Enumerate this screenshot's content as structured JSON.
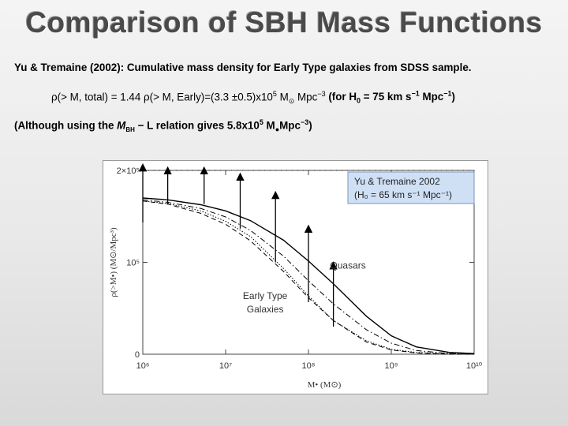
{
  "title": "Comparison of SBH Mass Functions",
  "line1": "Yu & Tremaine (2002): Cumulative mass density for Early Type galaxies from SDSS sample.",
  "line2": {
    "rho1": "ρ",
    "part1": "(> M, total) = 1.44 ",
    "rho2": "ρ",
    "part2": "(> M, Early)=(3.3 ±0.5)x10",
    "exp": "5",
    "msun": " M",
    "sun": "⊙",
    "mpc": " Mpc",
    "mpcexp": "−3",
    "hubble_pre": " (for H",
    "hubble_sub": "0",
    "hubble_post": " = 75 km s",
    "sexp": "−1",
    "mpc2": " Mpc",
    "mpc2exp": "−1",
    "close": ")"
  },
  "line3": {
    "pre": "(Although using the ",
    "m": "M",
    "sub": "BH",
    "mid": " − L relation gives 5.8x10",
    "exp": "5",
    "msun": " M",
    "sun": "●",
    "mpc": "Mpc",
    "mpcexp": "−3",
    "close": ")"
  },
  "chart_data": {
    "type": "line",
    "xscale": "log",
    "xlim": [
      1000000,
      10000000000
    ],
    "ylim": [
      0,
      3
    ],
    "xticks": [
      {
        "value": 1000000,
        "label": "10⁶"
      },
      {
        "value": 10000000,
        "label": "10⁷"
      },
      {
        "value": 100000000,
        "label": "10⁸"
      },
      {
        "value": 1000000000,
        "label": "10⁹"
      },
      {
        "value": 10000000000,
        "label": "10¹⁰"
      }
    ],
    "yticks": [
      {
        "value": 0,
        "label": "0"
      },
      {
        "value": 1.5,
        "label": "10⁵"
      },
      {
        "value": 3,
        "label": "2×10⁵"
      }
    ],
    "xlabel": "M• (M⊙)",
    "ylabel": "ρ(>M•) (M⊙/Mpc³)",
    "legend_box": {
      "line1": "Yu & Tremaine 2002",
      "line2": "(H₀ = 65 km s⁻¹ Mpc⁻¹)"
    },
    "annotations": [
      {
        "text": "Quasars",
        "x": 300000000,
        "y": 1.4
      },
      {
        "text": "Early Type",
        "x": 30000000,
        "y": 0.9
      },
      {
        "text": "Galaxies",
        "x": 30000000,
        "y": 0.68
      }
    ],
    "series": [
      {
        "name": "Quasars",
        "style": "solid",
        "x": [
          1000000,
          2000000,
          5000000,
          10000000,
          20000000,
          50000000,
          100000000,
          200000000,
          500000000,
          1000000000,
          2000000000,
          5000000000,
          10000000000
        ],
        "y": [
          2.55,
          2.52,
          2.44,
          2.34,
          2.18,
          1.86,
          1.52,
          1.15,
          0.62,
          0.3,
          0.12,
          0.03,
          0.01
        ]
      },
      {
        "name": "Early Type Galaxies",
        "style": "dotted",
        "x": [
          1000000,
          2000000,
          5000000,
          10000000,
          20000000,
          50000000,
          100000000,
          200000000,
          500000000,
          1000000000,
          2000000000,
          5000000000,
          10000000000
        ],
        "y": [
          2.5,
          2.46,
          2.34,
          2.17,
          1.92,
          1.4,
          0.95,
          0.55,
          0.22,
          0.08,
          0.03,
          0.01,
          0.0
        ]
      },
      {
        "name": "dashed",
        "style": "dashed",
        "x": [
          1000000,
          2000000,
          5000000,
          10000000,
          20000000,
          50000000,
          100000000,
          200000000,
          500000000,
          1000000000,
          2000000000,
          5000000000,
          10000000000
        ],
        "y": [
          2.5,
          2.45,
          2.3,
          2.12,
          1.85,
          1.35,
          0.92,
          0.55,
          0.2,
          0.07,
          0.02,
          0.0,
          0.0
        ]
      },
      {
        "name": "dash-dot",
        "style": "dashdot",
        "x": [
          1000000,
          2000000,
          5000000,
          10000000,
          20000000,
          50000000,
          100000000,
          200000000,
          500000000,
          1000000000,
          2000000000,
          5000000000,
          10000000000
        ],
        "y": [
          2.52,
          2.48,
          2.38,
          2.24,
          2.02,
          1.6,
          1.2,
          0.82,
          0.4,
          0.18,
          0.06,
          0.01,
          0.0
        ]
      }
    ],
    "arrows": [
      {
        "x": 1000000,
        "y_from": 2.15,
        "y_to": 3.05
      },
      {
        "x": 2000000,
        "y_from": 2.45,
        "y_to": 3.0
      },
      {
        "x": 5500000,
        "y_from": 2.45,
        "y_to": 3.0
      },
      {
        "x": 15000000,
        "y_from": 2.05,
        "y_to": 2.9
      },
      {
        "x": 40000000,
        "y_from": 1.5,
        "y_to": 2.6
      },
      {
        "x": 100000000,
        "y_from": 0.85,
        "y_to": 2.05
      },
      {
        "x": 200000000,
        "y_from": 0.45,
        "y_to": 1.45
      }
    ]
  }
}
